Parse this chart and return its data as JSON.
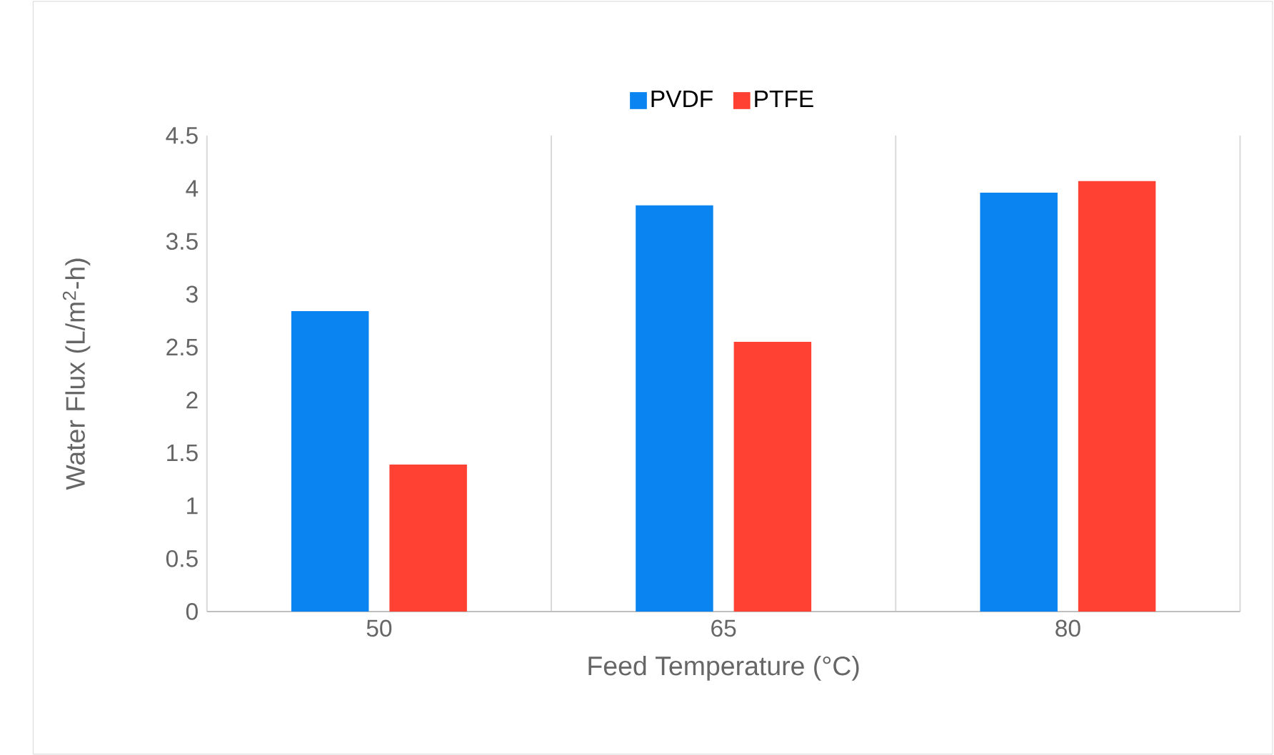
{
  "chart_data": {
    "type": "bar",
    "xlabel": "Feed Temperature (°C)",
    "ylabel": "Water Flux (L/m$^{2}$-h)",
    "categories": [
      "50",
      "65",
      "80"
    ],
    "series": [
      {
        "name": "PVDF",
        "color": "#0a84f0",
        "values": [
          2.84,
          3.84,
          3.96
        ]
      },
      {
        "name": "PTFE",
        "color": "#ff4133",
        "values": [
          1.39,
          2.55,
          4.07
        ]
      }
    ],
    "ylim": [
      0,
      4.5
    ],
    "yticks": [
      0,
      0.5,
      1,
      1.5,
      2,
      2.5,
      3,
      3.5,
      4,
      4.5
    ],
    "grid": "x",
    "legend": "top"
  }
}
